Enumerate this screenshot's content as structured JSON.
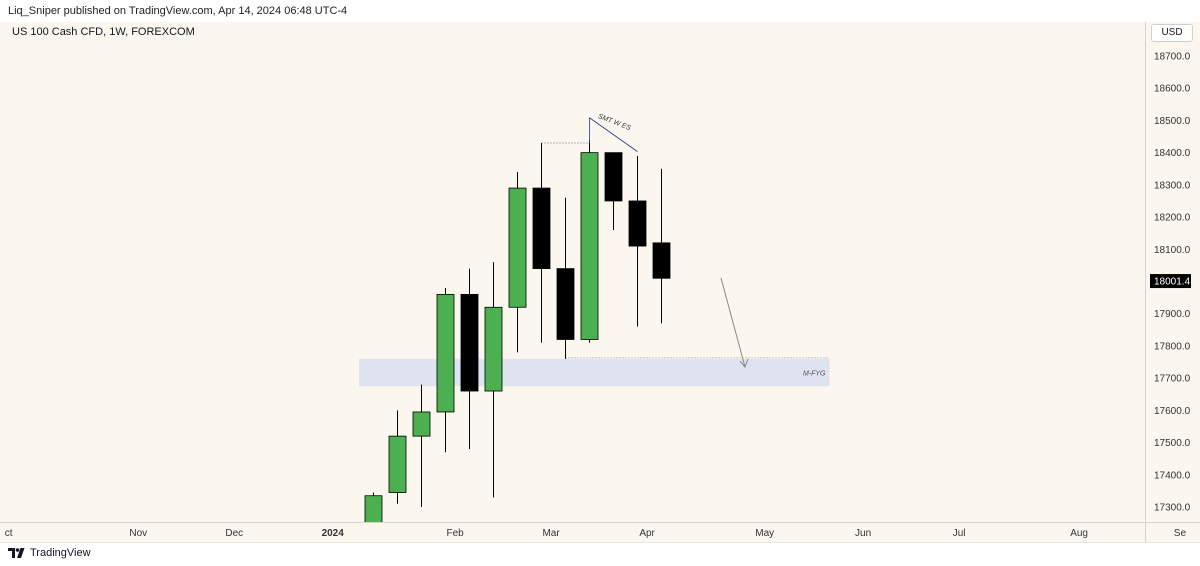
{
  "header": {
    "published_text": "Liq_Sniper published on TradingView.com, Apr 14, 2024 06:48 UTC-4"
  },
  "symbol": {
    "title": "US 100 Cash CFD, 1W, FOREXCOM",
    "currency": "USD"
  },
  "footer": {
    "brand": "TradingView"
  },
  "colors": {
    "up": "#4caf50",
    "down": "#000000",
    "zone": "#dbe0ee",
    "annotation": "#2a3a8c"
  },
  "chart_data": {
    "type": "candlestick",
    "ylim": [
      17230,
      18800
    ],
    "price_ticks": [
      17300,
      17400,
      17500,
      17600,
      17700,
      17800,
      17900,
      18000,
      18100,
      18200,
      18300,
      18400,
      18500,
      18600,
      18700
    ],
    "price_tick_labels": [
      "17300.0",
      "17400.0",
      "17500.0",
      "17600.0",
      "17700.0",
      "17800.0",
      "17900.0",
      "18000.0",
      "18100.0",
      "18200.0",
      "18300.0",
      "18400.0",
      "18500.0",
      "18600.0",
      "18700.0"
    ],
    "current_price": 18001.4,
    "current_price_label": "18001.4",
    "time_labels": [
      {
        "label": "ct",
        "index": -15.2,
        "bold": false
      },
      {
        "label": "Nov",
        "index": -9.8,
        "bold": false
      },
      {
        "label": "Dec",
        "index": -5.8,
        "bold": false
      },
      {
        "label": "2024",
        "index": -1.7,
        "bold": true
      },
      {
        "label": "Feb",
        "index": 3.4,
        "bold": false
      },
      {
        "label": "Mar",
        "index": 7.4,
        "bold": false
      },
      {
        "label": "Apr",
        "index": 11.4,
        "bold": false
      },
      {
        "label": "May",
        "index": 16.3,
        "bold": false
      },
      {
        "label": "Jun",
        "index": 20.4,
        "bold": false
      },
      {
        "label": "Jul",
        "index": 24.4,
        "bold": false
      },
      {
        "label": "Aug",
        "index": 29.4,
        "bold": false
      },
      {
        "label": "Se",
        "index": 33.6,
        "bold": false
      }
    ],
    "candles": [
      {
        "open": 17230,
        "high": 17345,
        "low": 17230,
        "close": 17335
      },
      {
        "open": 17345,
        "high": 17600,
        "low": 17310,
        "close": 17520
      },
      {
        "open": 17520,
        "high": 17680,
        "low": 17300,
        "close": 17595
      },
      {
        "open": 17595,
        "high": 17980,
        "low": 17470,
        "close": 17960
      },
      {
        "open": 17960,
        "high": 18040,
        "low": 17480,
        "close": 17660
      },
      {
        "open": 17660,
        "high": 18060,
        "low": 17330,
        "close": 17920
      },
      {
        "open": 17920,
        "high": 18340,
        "low": 17780,
        "close": 18290
      },
      {
        "open": 18290,
        "high": 18430,
        "low": 17810,
        "close": 18040
      },
      {
        "open": 18040,
        "high": 18260,
        "low": 17760,
        "close": 17820
      },
      {
        "open": 17820,
        "high": 18440,
        "low": 17810,
        "close": 18400
      },
      {
        "open": 18400,
        "high": 18400,
        "low": 18160,
        "close": 18250
      },
      {
        "open": 18250,
        "high": 18390,
        "low": 17860,
        "close": 18110
      },
      {
        "open": 18120,
        "high": 18350,
        "low": 17870,
        "close": 18010
      }
    ],
    "zones": [
      {
        "label": "M-FYG",
        "y_top": 17760,
        "y_bottom": 17675,
        "x_start": -0.6,
        "x_end": 19.0
      }
    ],
    "annotations": [
      {
        "label": "SMT W ES"
      }
    ]
  }
}
